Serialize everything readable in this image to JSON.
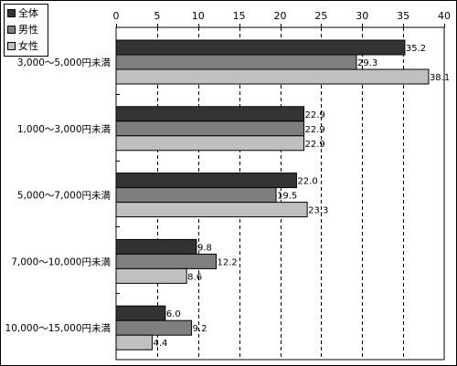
{
  "chart_data": {
    "type": "bar",
    "orientation": "horizontal",
    "categories": [
      "3,000～5,000円未満",
      "1,000～3,000円未満",
      "5,000～7,000円未満",
      "7,000～10,000円未満",
      "10,000～15,000円未満"
    ],
    "series": [
      {
        "name": "全体",
        "values": [
          35.2,
          22.9,
          22.0,
          9.8,
          6.0
        ],
        "color": "#333333"
      },
      {
        "name": "男性",
        "values": [
          29.3,
          22.9,
          19.5,
          12.2,
          9.2
        ],
        "color": "#7f7f7f"
      },
      {
        "name": "女性",
        "values": [
          38.1,
          22.9,
          23.3,
          8.6,
          4.4
        ],
        "color": "#c0c0c0"
      }
    ],
    "value_labels": [
      [
        "35.2",
        "22.9",
        "22.0",
        "9.8",
        "6.0"
      ],
      [
        "29.3",
        "22.9",
        "19.5",
        "12.2",
        "9.2"
      ],
      [
        "38.1",
        "22.9",
        "23.3",
        "8.6",
        "4.4"
      ]
    ],
    "xlim": [
      0,
      40
    ],
    "ticks": [
      "0",
      "5",
      "10",
      "15",
      "20",
      "25",
      "30",
      "35",
      "40"
    ],
    "tick_values": [
      0,
      5,
      10,
      15,
      20,
      25,
      30,
      35,
      40
    ],
    "axis_position": "top",
    "grid": true,
    "grid_style": "dashed",
    "legend_position": "top-left",
    "title": "",
    "xlabel": "",
    "ylabel": ""
  }
}
